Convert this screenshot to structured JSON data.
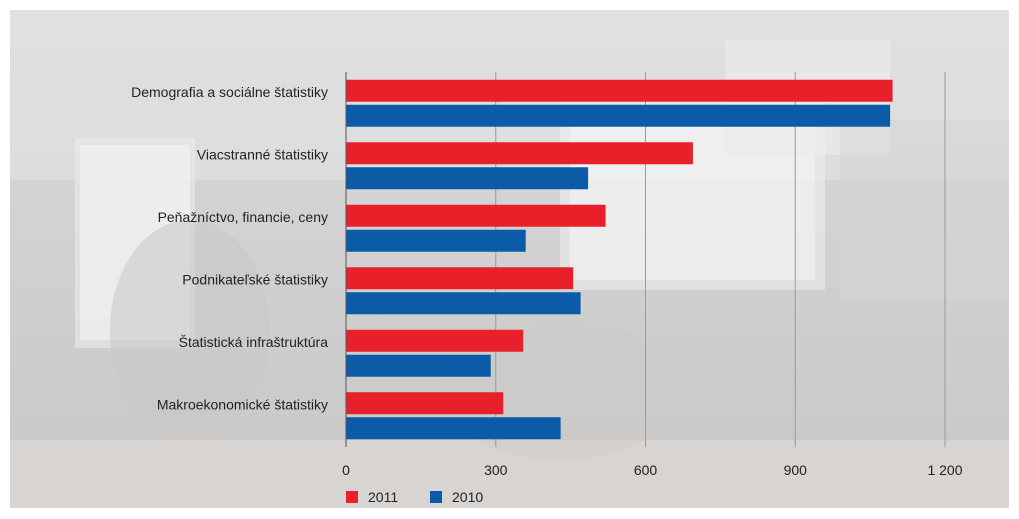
{
  "chart_data": {
    "type": "bar",
    "orientation": "horizontal",
    "categories": [
      "Demografia a sociálne štatistiky",
      "Viacstranné štatistiky",
      "Peňažníctvo, financie, ceny",
      "Podnikateľské štatistiky",
      "Štatistická infraštruktúra",
      "Makroekonomické štatistiky"
    ],
    "series": [
      {
        "name": "2011",
        "color": "#e8202a",
        "values": [
          1095,
          695,
          520,
          455,
          355,
          315
        ]
      },
      {
        "name": "2010",
        "color": "#0b5ba8",
        "values": [
          1090,
          485,
          360,
          470,
          290,
          430
        ]
      }
    ],
    "xlim": [
      0,
      1200
    ],
    "xticks": [
      0,
      300,
      600,
      900,
      1200
    ],
    "xtick_labels": [
      "0",
      "300",
      "600",
      "900",
      "1 200"
    ],
    "grid": true,
    "legend_position": "bottom-left",
    "background": "faded photograph of office workstations with computer monitors"
  }
}
